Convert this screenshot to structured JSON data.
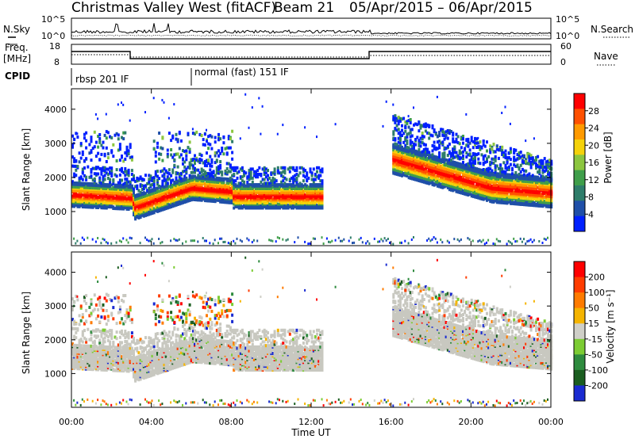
{
  "header": {
    "station": "Christmas Valley West (fitACF)",
    "beam": "Beam 21",
    "date_range": "05/Apr/2015 – 06/Apr/2015"
  },
  "top_panels": {
    "nsky_label": "N.Sky",
    "nsearch_label": "N.Search",
    "n_ticks": [
      "10^5",
      "10^0"
    ],
    "freq_label": "Freq.",
    "freq_unit": "[MHz]",
    "freq_ticks": [
      "18",
      "8"
    ],
    "nave_label": "Nave",
    "nave_ticks": [
      "60",
      "0"
    ],
    "cpid_label": "CPID"
  },
  "cpid_segments": [
    {
      "label": "rbsp 201 IF",
      "start_hour": 0
    },
    {
      "label": "normal (fast) 151 IF",
      "start_hour": 6
    }
  ],
  "colors": {
    "power": [
      "#0020ff",
      "#1f4fa8",
      "#2e7d6a",
      "#3f9e4a",
      "#8cc63f",
      "#f5d20a",
      "#ff9a00",
      "#ff5000",
      "#ff0000"
    ],
    "velocity": [
      "#1a2bd1",
      "#1b5e20",
      "#2e8b3e",
      "#7ccc33",
      "#cfcfc8",
      "#f5b400",
      "#ff7b00",
      "#ff3c00",
      "#ff0000"
    ],
    "ground_scatter": "#c8c8c0"
  },
  "chart_data": [
    {
      "type": "heatmap",
      "name": "power",
      "xlabel": "Time UT",
      "ylabel": "Slant Range [km]",
      "ylim": [
        0,
        4600
      ],
      "xlim_hours": [
        0,
        24
      ],
      "x_ticks": [
        "00:00",
        "04:00",
        "08:00",
        "12:00",
        "16:00",
        "20:00",
        "00:00"
      ],
      "y_ticks": [
        1000,
        2000,
        3000,
        4000
      ],
      "colorbar_label": "Power [dB]",
      "colorbar_ticks": [
        "4",
        "8",
        "12",
        "16",
        "20",
        "24",
        "28"
      ]
    },
    {
      "type": "heatmap",
      "name": "velocity",
      "xlabel": "Time UT",
      "ylabel": "Slant Range [km]",
      "ylim": [
        0,
        4600
      ],
      "xlim_hours": [
        0,
        24
      ],
      "x_ticks": [
        "00:00",
        "04:00",
        "08:00",
        "12:00",
        "16:00",
        "20:00",
        "00:00"
      ],
      "y_ticks": [
        1000,
        2000,
        3000,
        4000
      ],
      "colorbar_label": "Velocity [m s⁻¹]",
      "colorbar_ticks": [
        "200",
        "100",
        "50",
        "15",
        "-15",
        "-50",
        "-100",
        "-200"
      ]
    }
  ]
}
